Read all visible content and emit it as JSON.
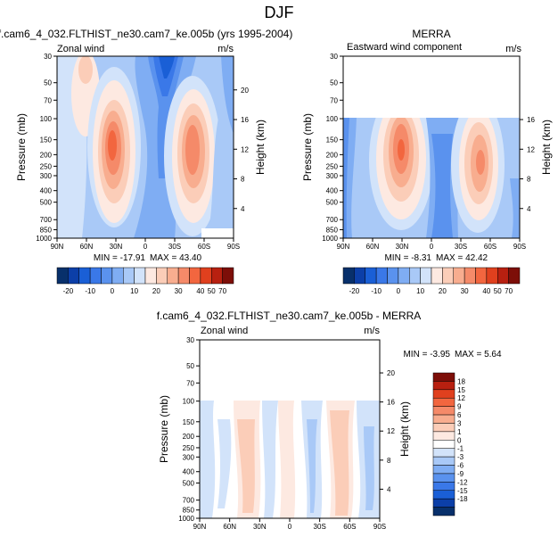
{
  "page_title": "DJF",
  "chart_data": [
    {
      "type": "heatmap",
      "title": "f.cam6_4_032.FLTHIST_ne30.cam7_ke.005b (yrs 1995-2004)",
      "left_label": "Zonal wind",
      "units": "m/s",
      "ylabel": "Pressure (mb)",
      "ylabel_right": "Height (km)",
      "x_ticks": [
        "90N",
        "60N",
        "30N",
        "0",
        "30S",
        "60S",
        "90S"
      ],
      "y_ticks": [
        "30",
        "50",
        "70",
        "100",
        "150",
        "200",
        "250",
        "300",
        "400",
        "500",
        "700",
        "850",
        "1000"
      ],
      "height_ticks": [
        "20",
        "16",
        "12",
        "8",
        "4"
      ],
      "min_text": "MIN = -17.91",
      "max_text": "MAX = 43.40",
      "ylim": [
        1000,
        30
      ],
      "xlim": [
        90,
        -90
      ]
    },
    {
      "type": "heatmap",
      "title": "MERRA",
      "left_label": "Eastward wind component",
      "units": "m/s",
      "ylabel": "Pressure (mb)",
      "ylabel_right": "Height (km)",
      "x_ticks": [
        "90N",
        "60N",
        "30N",
        "0",
        "30S",
        "60S",
        "90S"
      ],
      "y_ticks": [
        "30",
        "50",
        "70",
        "100",
        "150",
        "200",
        "250",
        "300",
        "400",
        "500",
        "700",
        "850",
        "1000"
      ],
      "height_ticks": [
        "16",
        "12",
        "8",
        "4"
      ],
      "min_text": "MIN = -8.31",
      "max_text": "MAX = 42.42",
      "ylim": [
        1000,
        30
      ],
      "xlim": [
        90,
        -90
      ]
    },
    {
      "type": "heatmap",
      "title": "f.cam6_4_032.FLTHIST_ne30.cam7_ke.005b - MERRA",
      "left_label": "Zonal wind",
      "units": "m/s",
      "ylabel": "Pressure (mb)",
      "ylabel_right": "Height (km)",
      "x_ticks": [
        "90N",
        "60N",
        "30N",
        "0",
        "30S",
        "60S",
        "90S"
      ],
      "y_ticks": [
        "30",
        "50",
        "70",
        "100",
        "150",
        "200",
        "250",
        "300",
        "400",
        "500",
        "700",
        "850",
        "1000"
      ],
      "height_ticks": [
        "20",
        "16",
        "12",
        "8",
        "4"
      ],
      "min_text": "MIN = -3.95",
      "max_text": "MAX = 5.64",
      "ylim": [
        1000,
        30
      ],
      "xlim": [
        90,
        -90
      ]
    }
  ],
  "colorbar_top": {
    "labels": [
      "-20",
      "-10",
      "0",
      "10",
      "20",
      "30",
      "40",
      "50",
      "70"
    ],
    "colors": [
      "#08306b",
      "#0c3fa8",
      "#1a5fd6",
      "#3a78e8",
      "#5a92ee",
      "#7fadf3",
      "#a9c9f7",
      "#d2e3fa",
      "#fde9e1",
      "#fbcdb8",
      "#f8ad8f",
      "#f58a69",
      "#f2663f",
      "#e0401e",
      "#b82010",
      "#7d0e08"
    ]
  },
  "colorbar_diff": {
    "labels": [
      "18",
      "15",
      "12",
      "9",
      "6",
      "3",
      "1",
      "0",
      "-1",
      "-3",
      "-6",
      "-9",
      "-12",
      "-15",
      "-18"
    ],
    "colors": [
      "#7d0e08",
      "#b82010",
      "#e0401e",
      "#f2663f",
      "#f58a69",
      "#f8ad8f",
      "#fbcdb8",
      "#fde9e1",
      "#ffffff",
      "#d2e3fa",
      "#a9c9f7",
      "#7fadf3",
      "#5a92ee",
      "#3a78e8",
      "#1a5fd6",
      "#0c3fa8",
      "#08306b"
    ]
  }
}
